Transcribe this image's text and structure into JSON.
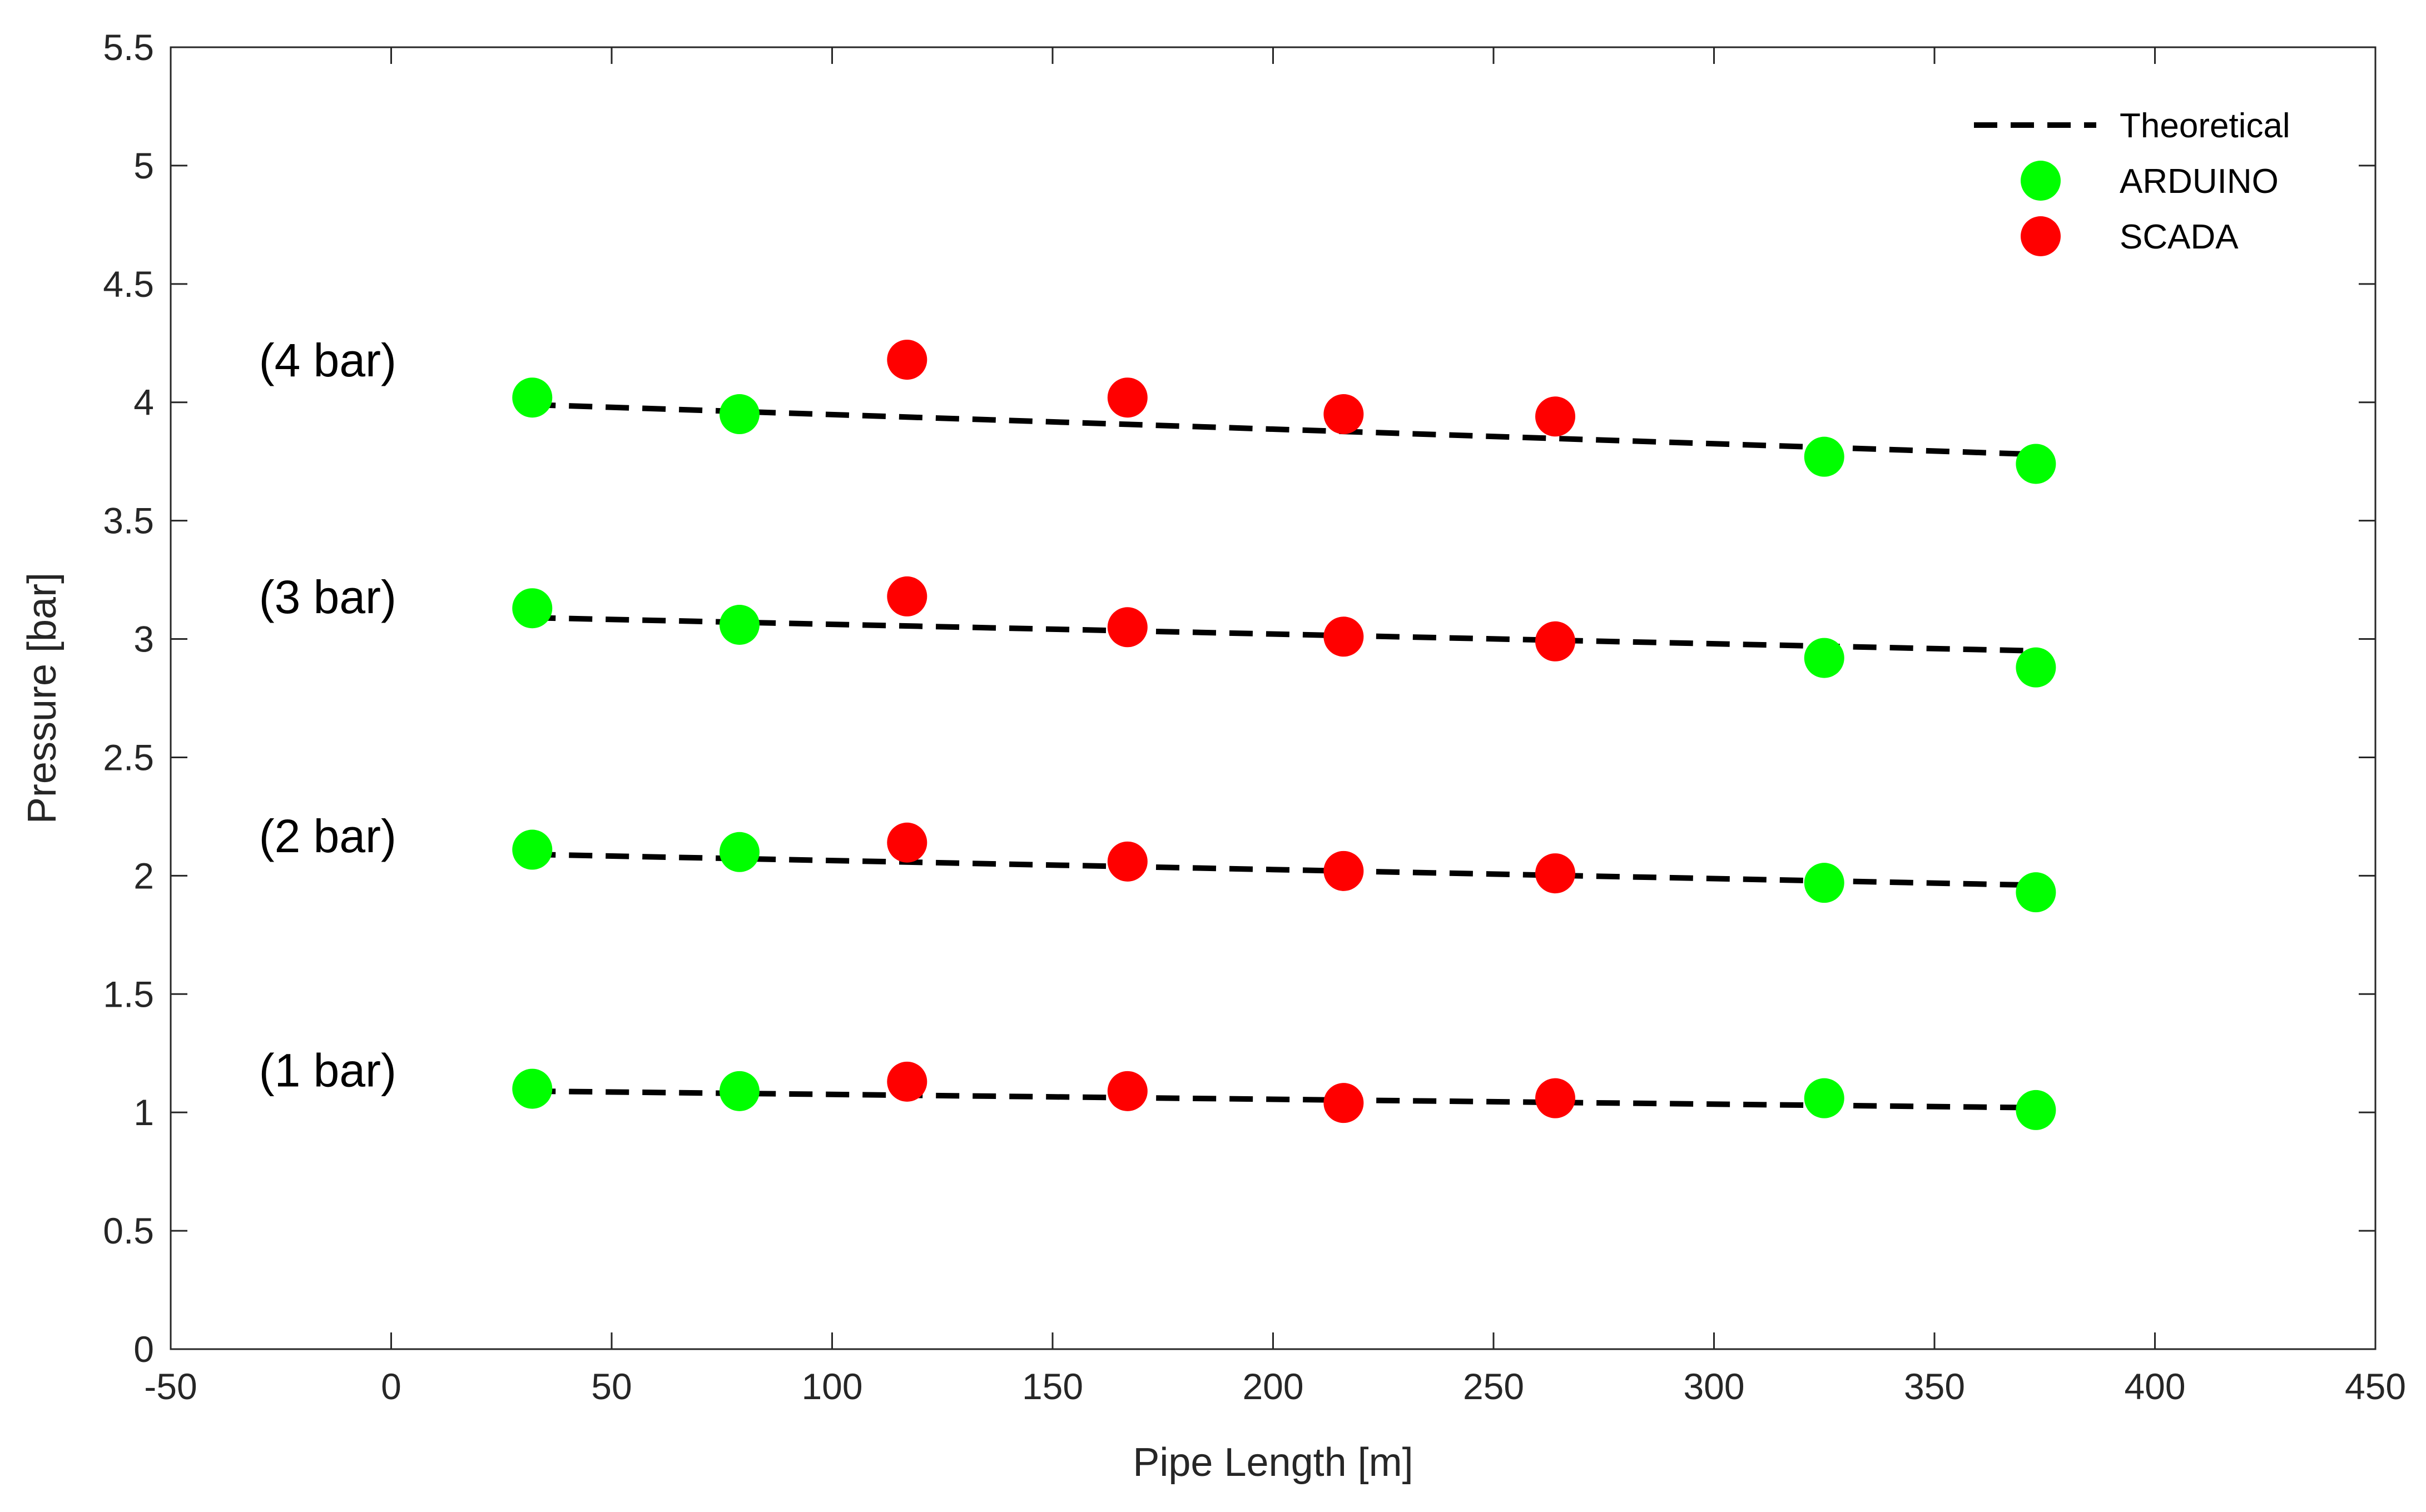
{
  "chart_data": {
    "type": "scatter",
    "title": "",
    "xlabel": "Pipe Length [m]",
    "ylabel": "Pressure [bar]",
    "xlim": [
      -50,
      450
    ],
    "ylim": [
      0,
      5.5
    ],
    "xticks": [
      "-50",
      "0",
      "50",
      "100",
      "150",
      "200",
      "250",
      "300",
      "350",
      "400",
      "450"
    ],
    "yticks": [
      "0",
      "0.5",
      "1",
      "1.5",
      "2",
      "2.5",
      "3",
      "3.5",
      "4",
      "4.5",
      "5",
      "5.5"
    ],
    "grid": false,
    "legend_position": "top-right",
    "colors": {
      "theoretical": "#000000",
      "arduino": "#00ff00",
      "scada": "#ff0000",
      "axis": "#262626"
    },
    "series": [
      {
        "name": "Theoretical",
        "style": "dashed-line",
        "lines": [
          {
            "x": [
              32,
              373
            ],
            "y": [
              1.09,
              1.02
            ]
          },
          {
            "x": [
              32,
              373
            ],
            "y": [
              2.09,
              1.96
            ]
          },
          {
            "x": [
              32,
              373
            ],
            "y": [
              3.09,
              2.95
            ]
          },
          {
            "x": [
              32,
              373
            ],
            "y": [
              3.99,
              3.78
            ]
          }
        ]
      },
      {
        "name": "ARDUINO",
        "style": "marker",
        "x": [
          32,
          79,
          325,
          373,
          32,
          79,
          325,
          373,
          32,
          79,
          325,
          373,
          32,
          79,
          325,
          373
        ],
        "y": [
          1.1,
          1.09,
          1.06,
          1.01,
          2.11,
          2.1,
          1.97,
          1.93,
          3.13,
          3.06,
          2.92,
          2.88,
          4.02,
          3.95,
          3.77,
          3.74
        ]
      },
      {
        "name": "SCADA",
        "style": "marker",
        "x": [
          117,
          167,
          216,
          264,
          117,
          167,
          216,
          264,
          117,
          167,
          216,
          264,
          117,
          167,
          216,
          264
        ],
        "y": [
          1.13,
          1.09,
          1.04,
          1.06,
          2.14,
          2.06,
          2.02,
          2.01,
          3.18,
          3.05,
          3.01,
          2.99,
          4.18,
          4.02,
          3.95,
          3.94
        ]
      }
    ],
    "annotations": [
      {
        "text": "(4 bar)",
        "x": -30,
        "y": 4.18
      },
      {
        "text": "(3 bar)",
        "x": -30,
        "y": 3.18
      },
      {
        "text": "(2 bar)",
        "x": -30,
        "y": 2.17
      },
      {
        "text": "(1 bar)",
        "x": -30,
        "y": 1.18
      }
    ]
  }
}
